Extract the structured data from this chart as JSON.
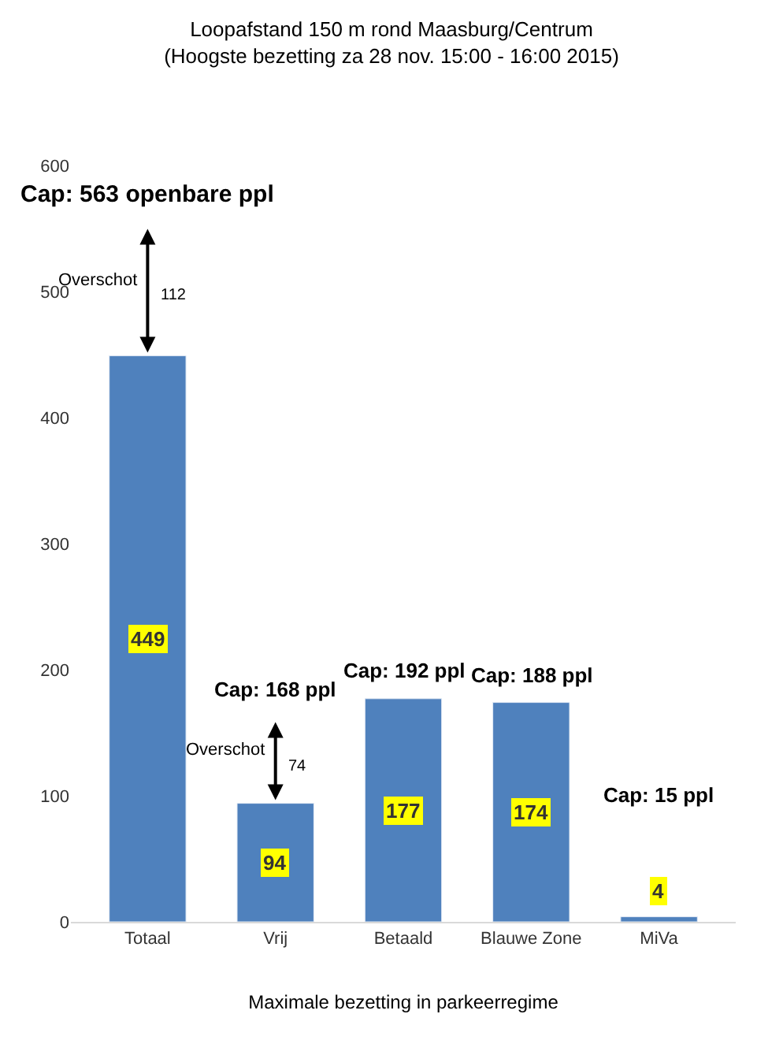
{
  "chart_data": {
    "type": "bar",
    "title": "Loopafstand 150 m rond Maasburg/Centrum",
    "subtitle": "(Hoogste bezetting za 28 nov. 15:00 - 16:00 2015)",
    "xlabel": "Maximale bezetting in parkeerregime",
    "categories": [
      "Totaal",
      "Vrij",
      "Betaald",
      "Blauwe Zone",
      "MiVa"
    ],
    "values": [
      449,
      94,
      177,
      174,
      4
    ],
    "color": "#4f81bd",
    "data_labels": true,
    "ylim": [
      0,
      600
    ],
    "yticks": [
      0,
      100,
      200,
      300,
      400,
      500,
      600
    ],
    "annotations": [
      "Cap: 563 openbare ppl",
      "Overschot",
      "112",
      "Cap: 168 ppl",
      "Overschot",
      "74",
      "Cap: 192 ppl",
      "Cap: 188 ppl",
      "Cap: 15 ppl"
    ]
  }
}
